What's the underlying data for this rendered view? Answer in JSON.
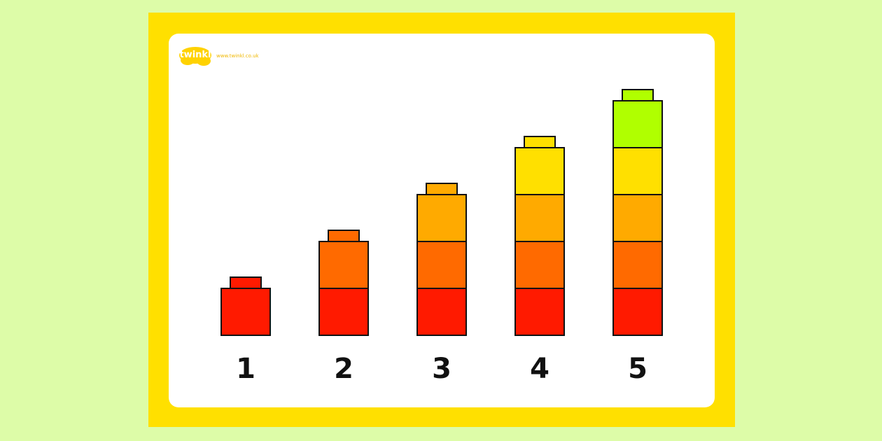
{
  "logo": {
    "name": "twinkl",
    "url": "www.twinkl.co.uk"
  },
  "columns": [
    {
      "label": "1",
      "blocks": [
        "#ff1a00"
      ]
    },
    {
      "label": "2",
      "blocks": [
        "#ff1a00",
        "#ff6a00"
      ]
    },
    {
      "label": "3",
      "blocks": [
        "#ff1a00",
        "#ff6a00",
        "#ffaa00"
      ]
    },
    {
      "label": "4",
      "blocks": [
        "#ff1a00",
        "#ff6a00",
        "#ffaa00",
        "#ffe000"
      ]
    },
    {
      "label": "5",
      "blocks": [
        "#ff1a00",
        "#ff6a00",
        "#ffaa00",
        "#ffe000",
        "#b0ff00"
      ]
    }
  ]
}
